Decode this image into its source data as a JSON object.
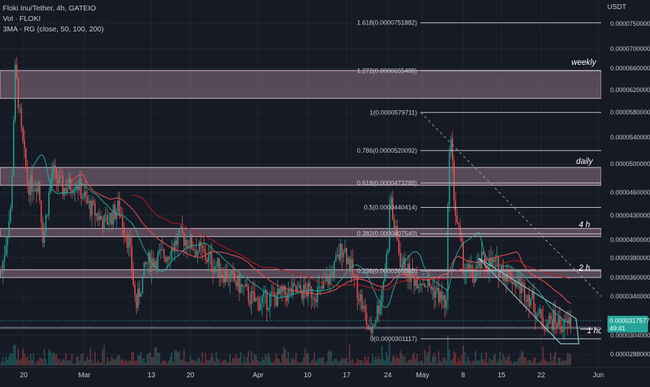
{
  "header": {
    "symbol_line": "Floki Inu/Tether, 4h, GATEIO",
    "volume_line": "Vol · FLOKI",
    "indicator_line": "3MA - RG (close, 50, 100, 200)"
  },
  "price_axis": {
    "unit": "USDT",
    "labels": [
      "0.0000750000",
      "0.0000700000",
      "0.0000660000",
      "0.0000620000",
      "0.0000580000",
      "0.0000540000",
      "0.0000500000",
      "0.0000460000",
      "0.0000430000",
      "0.0000400000",
      "0.0000380000",
      "0.0000360000",
      "0.0000340000",
      "0.0000304000",
      "0.0000288000"
    ],
    "last_price": "0.0000317577",
    "countdown": "49:41",
    "last_price_color": "#26a69a"
  },
  "time_axis": {
    "labels": [
      "20",
      "Mar",
      "13",
      "20",
      "Apr",
      "10",
      "17",
      "24",
      "May",
      "8",
      "15",
      "22",
      "Jun"
    ]
  },
  "chart_data": {
    "type": "candlestick",
    "title": "Floki Inu/Tether, 4h, GATEIO",
    "xlabel": "",
    "ylabel": "USDT",
    "ylim": [
      2.82e-05,
      7.6e-05
    ],
    "fibonacci": [
      {
        "ratio": "1.618",
        "price": "0.0000751882"
      },
      {
        "ratio": "1.272",
        "price": "0.0000655488"
      },
      {
        "ratio": "1",
        "price": "0.0000579711"
      },
      {
        "ratio": "0.786",
        "price": "0.0000520092"
      },
      {
        "ratio": "0.618",
        "price": "0.0000473288"
      },
      {
        "ratio": "0.5",
        "price": "0.0000440414"
      },
      {
        "ratio": "0.382",
        "price": "0.0000407540"
      },
      {
        "ratio": "0.236",
        "price": "0.0000366865"
      },
      {
        "ratio": "0",
        "price": "0.0000301117"
      }
    ],
    "zones": [
      {
        "label": "weekly",
        "from": 6.05e-05,
        "to": 6.56e-05
      },
      {
        "label": "daily",
        "from": 4.7e-05,
        "to": 4.95e-05
      },
      {
        "label": "4 h",
        "from": 4.04e-05,
        "to": 4.14e-05
      },
      {
        "label": "2 h",
        "from": 3.6e-05,
        "to": 3.68e-05
      },
      {
        "label": "1 hour",
        "from": 3.1e-05,
        "to": 3.12e-05
      }
    ],
    "moving_averages": [
      {
        "name": "MA 50",
        "color": "#26a69a"
      },
      {
        "name": "MA 100",
        "color": "#ef5350"
      },
      {
        "name": "MA 200",
        "color": "#b71c1c"
      }
    ],
    "colors": {
      "up": "#26a69a",
      "down": "#ef5350",
      "zone": "#b48aa0",
      "fib": "#c9ccd6"
    }
  }
}
